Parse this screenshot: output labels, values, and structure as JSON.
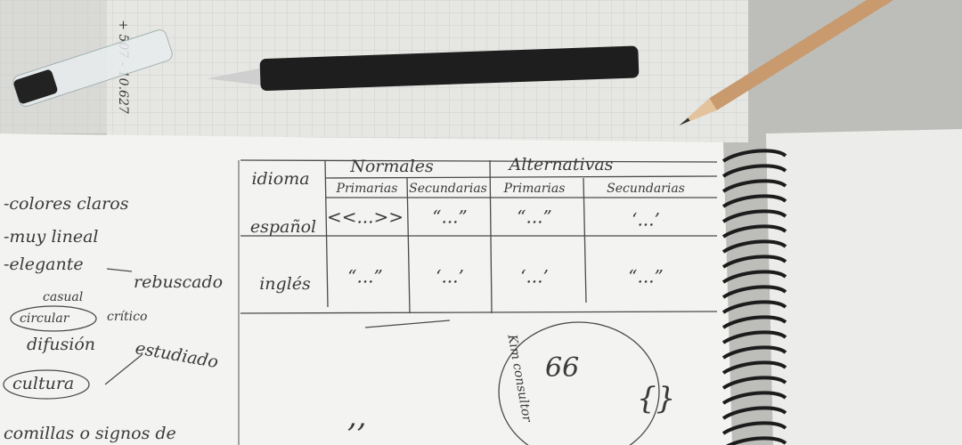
{
  "top_paper_number": "+ 507 - 10.627",
  "left_notes": [
    "-colores claros",
    "-muy lineal",
    "-elegante",
    "rebuscado",
    "casual",
    "circular",
    "crítico",
    "difusión",
    "estudiado",
    "cultura",
    "comillas o signos de"
  ],
  "table": {
    "corner": "idioma",
    "groups": [
      "Normales",
      "Alternativas"
    ],
    "subheaders": [
      "Primarias",
      "Secundarias",
      "Primarias",
      "Secundarias"
    ],
    "rows": [
      {
        "label": "español",
        "cells": [
          "<<...>>",
          "“...”",
          "“...”",
          "‘...’"
        ]
      },
      {
        "label": "inglés",
        "cells": [
          "“...”",
          "‘...’",
          "‘...’",
          "“...”"
        ]
      }
    ]
  },
  "sketch_note": "Kim consultor"
}
